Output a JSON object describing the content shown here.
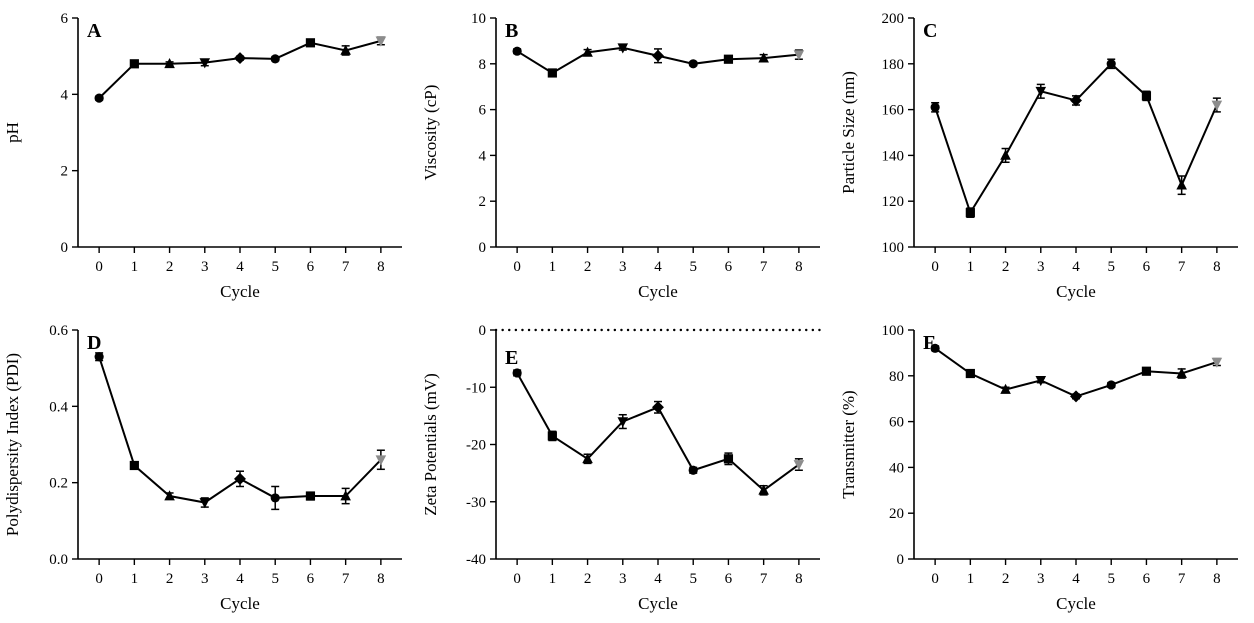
{
  "figure": {
    "background": "#ffffff",
    "panels": [
      "A",
      "B",
      "C",
      "D",
      "E",
      "F"
    ]
  },
  "style": {
    "line_color": "#000000",
    "axis_color": "#000000",
    "ref_line_color": "#000000",
    "marker_shapes": [
      "circle",
      "square",
      "triangle-up",
      "triangle-down",
      "diamond",
      "circle",
      "square",
      "triangle-up",
      "triangle-down"
    ],
    "marker_colors": [
      "#000000",
      "#000000",
      "#000000",
      "#000000",
      "#000000",
      "#000000",
      "#000000",
      "#000000",
      "#8c8c8c"
    ]
  },
  "chart_data": [
    {
      "id": "A",
      "type": "line",
      "panel_label": "A",
      "xlabel": "Cycle",
      "ylabel": "pH",
      "x": [
        0,
        1,
        2,
        3,
        4,
        5,
        6,
        7,
        8
      ],
      "xticks": [
        0,
        1,
        2,
        3,
        4,
        5,
        6,
        7,
        8
      ],
      "xlim": [
        -0.6,
        8.6
      ],
      "ylim": [
        0,
        6
      ],
      "yticks": [
        0,
        2,
        4,
        6
      ],
      "ytick_labels": [
        "0",
        "2",
        "4",
        "6"
      ],
      "values": [
        3.9,
        4.8,
        4.8,
        4.83,
        4.95,
        4.93,
        5.35,
        5.15,
        5.4
      ],
      "errors": [
        0.05,
        0.05,
        0.05,
        0.08,
        0.05,
        0.05,
        0.06,
        0.12,
        0.1
      ]
    },
    {
      "id": "B",
      "type": "line",
      "panel_label": "B",
      "xlabel": "Cycle",
      "ylabel": "Viscosity (cP)",
      "x": [
        0,
        1,
        2,
        3,
        4,
        5,
        6,
        7,
        8
      ],
      "xticks": [
        0,
        1,
        2,
        3,
        4,
        5,
        6,
        7,
        8
      ],
      "xlim": [
        -0.6,
        8.6
      ],
      "ylim": [
        0,
        10
      ],
      "yticks": [
        0,
        2,
        4,
        6,
        8,
        10
      ],
      "ytick_labels": [
        "0",
        "2",
        "4",
        "6",
        "8",
        "10"
      ],
      "values": [
        8.55,
        7.6,
        8.5,
        8.7,
        8.35,
        8.0,
        8.2,
        8.25,
        8.4
      ],
      "errors": [
        0.1,
        0.15,
        0.12,
        0.1,
        0.3,
        0.08,
        0.1,
        0.15,
        0.2
      ]
    },
    {
      "id": "C",
      "type": "line",
      "panel_label": "C",
      "xlabel": "Cycle",
      "ylabel": "Particle Size (nm)",
      "x": [
        0,
        1,
        2,
        3,
        4,
        5,
        6,
        7,
        8
      ],
      "xticks": [
        0,
        1,
        2,
        3,
        4,
        5,
        6,
        7,
        8
      ],
      "xlim": [
        -0.6,
        8.6
      ],
      "ylim": [
        100,
        200
      ],
      "yticks": [
        100,
        120,
        140,
        160,
        180,
        200
      ],
      "ytick_labels": [
        "100",
        "120",
        "140",
        "160",
        "180",
        "200"
      ],
      "values": [
        161,
        115,
        140,
        168,
        164,
        180,
        166,
        127,
        162
      ],
      "errors": [
        2,
        2,
        3,
        3,
        2,
        2,
        2,
        4,
        3
      ]
    },
    {
      "id": "D",
      "type": "line",
      "panel_label": "D",
      "xlabel": "Cycle",
      "ylabel": "Polydispersity Index (PDI)",
      "x": [
        0,
        1,
        2,
        3,
        4,
        5,
        6,
        7,
        8
      ],
      "xticks": [
        0,
        1,
        2,
        3,
        4,
        5,
        6,
        7,
        8
      ],
      "xlim": [
        -0.6,
        8.6
      ],
      "ylim": [
        0,
        0.6
      ],
      "yticks": [
        0,
        0.2,
        0.4,
        0.6
      ],
      "ytick_labels": [
        "0.0",
        "0.2",
        "0.4",
        "0.6"
      ],
      "values": [
        0.53,
        0.245,
        0.165,
        0.148,
        0.21,
        0.16,
        0.165,
        0.165,
        0.26
      ],
      "errors": [
        0.01,
        0.008,
        0.008,
        0.012,
        0.02,
        0.03,
        0.01,
        0.02,
        0.025
      ]
    },
    {
      "id": "E",
      "type": "line",
      "panel_label": "E",
      "xlabel": "Cycle",
      "ylabel": "Zeta Potentials (mV)",
      "x": [
        0,
        1,
        2,
        3,
        4,
        5,
        6,
        7,
        8
      ],
      "xticks": [
        0,
        1,
        2,
        3,
        4,
        5,
        6,
        7,
        8
      ],
      "xlim": [
        -0.6,
        8.6
      ],
      "ylim": [
        -40,
        0
      ],
      "yticks": [
        0,
        -10,
        -20,
        -30,
        -40
      ],
      "ytick_labels": [
        "0",
        "-10",
        "-20",
        "-30",
        "-40"
      ],
      "values": [
        -7.5,
        -18.5,
        -22.5,
        -16,
        -13.5,
        -24.5,
        -22.5,
        -28,
        -23.5
      ],
      "errors": [
        0.5,
        0.8,
        0.8,
        1.2,
        1.0,
        0.5,
        1.0,
        0.8,
        1.0
      ],
      "ref_line": 0
    },
    {
      "id": "F",
      "type": "line",
      "panel_label": "F",
      "xlabel": "Cycle",
      "ylabel": "Transmitter (%)",
      "x": [
        0,
        1,
        2,
        3,
        4,
        5,
        6,
        7,
        8
      ],
      "xticks": [
        0,
        1,
        2,
        3,
        4,
        5,
        6,
        7,
        8
      ],
      "xlim": [
        -0.6,
        8.6
      ],
      "ylim": [
        0,
        100
      ],
      "yticks": [
        0,
        20,
        40,
        60,
        80,
        100
      ],
      "ytick_labels": [
        "0",
        "20",
        "40",
        "60",
        "80",
        "100"
      ],
      "values": [
        92,
        81,
        74,
        78,
        71,
        76,
        82,
        81,
        86
      ],
      "errors": [
        1,
        1,
        1,
        1,
        1,
        1,
        1,
        2,
        1.5
      ]
    }
  ]
}
